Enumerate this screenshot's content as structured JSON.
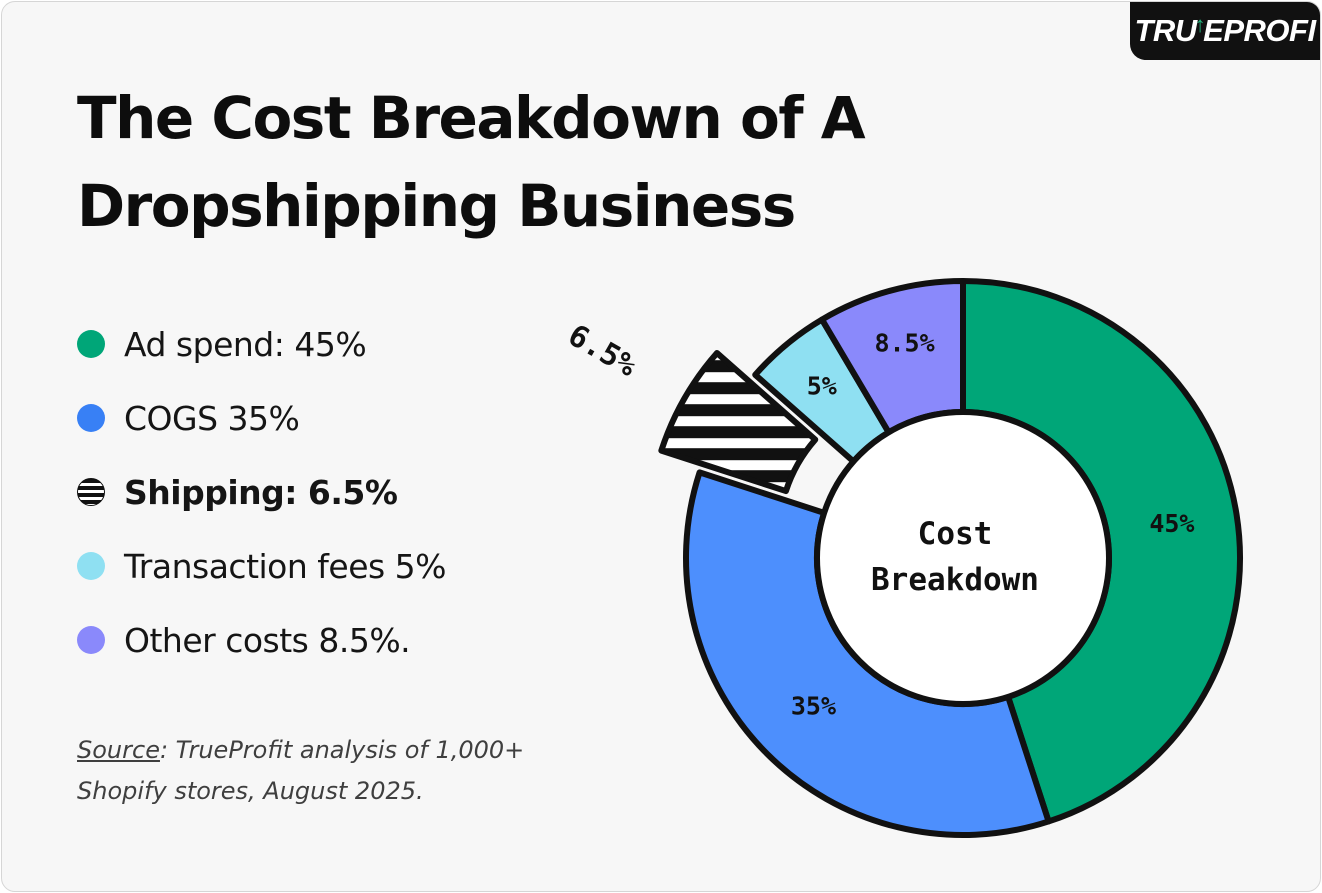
{
  "brand": {
    "logo_text_left": "TRU",
    "logo_text_right": "EPROFI"
  },
  "header": {
    "title": "The Cost Breakdown of A Dropshipping Business"
  },
  "legend": {
    "items": [
      {
        "label": "Ad spend: 45%",
        "color": "#00a678",
        "bold": false
      },
      {
        "label": "COGS 35%",
        "color": "#3880f5",
        "bold": false
      },
      {
        "label": "Shipping: 6.5%",
        "color": "striped",
        "bold": true
      },
      {
        "label": "Transaction fees 5%",
        "color": "#8fe0f2",
        "bold": false
      },
      {
        "label": "Other costs 8.5%.",
        "color": "#8a89fb",
        "bold": false
      }
    ]
  },
  "source": {
    "label": "Source",
    "text": ": TrueProfit analysis of 1,000+ Shopify stores, August 2025."
  },
  "chart_data": {
    "type": "pie",
    "subtype": "donut",
    "center_label_line1": "Cost",
    "center_label_line2": "Breakdown",
    "exploded_slice": "Shipping",
    "slices": [
      {
        "name": "Ad spend",
        "value": 45,
        "label": "45%",
        "color": "#00a678"
      },
      {
        "name": "COGS",
        "value": 35,
        "label": "35%",
        "color": "#4d8ffd"
      },
      {
        "name": "Shipping",
        "value": 6.5,
        "label": "6.5%",
        "color": "striped"
      },
      {
        "name": "Transaction fees",
        "value": 5,
        "label": "5%",
        "color": "#8fe0f2"
      },
      {
        "name": "Other costs",
        "value": 8.5,
        "label": "8.5%",
        "color": "#8a89fb"
      }
    ]
  }
}
